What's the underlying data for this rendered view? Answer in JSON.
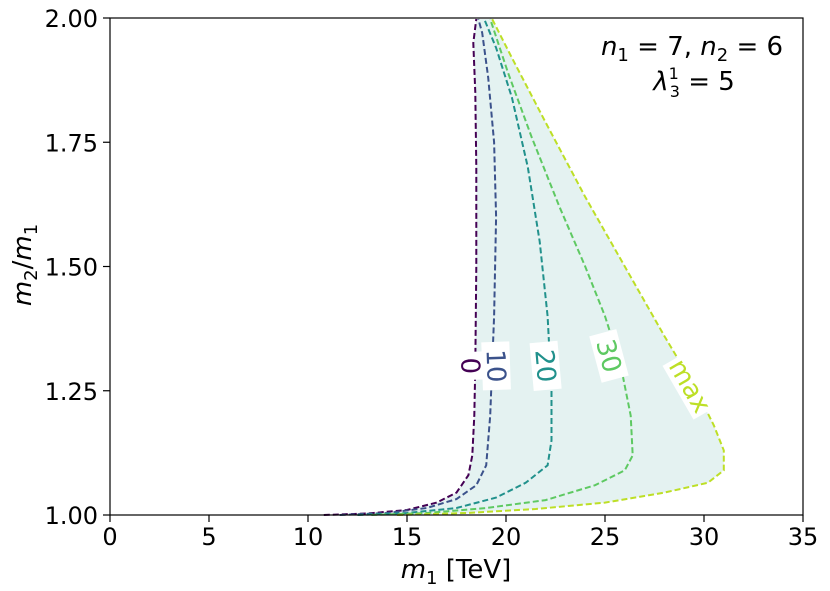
{
  "chart_data": {
    "type": "line",
    "title": "",
    "xlabel_main": "m",
    "xlabel_sub": "1",
    "xlabel_unit": " [TeV]",
    "ylabel_num": "m",
    "ylabel_num_sub": "2",
    "ylabel_sep": "/",
    "ylabel_den": "m",
    "ylabel_den_sub": "1",
    "xlim": [
      0,
      35
    ],
    "ylim": [
      1.0,
      2.0
    ],
    "x_ticks": [
      0,
      5,
      10,
      15,
      20,
      25,
      30,
      35
    ],
    "x_tick_labels": [
      "0",
      "5",
      "10",
      "15",
      "20",
      "25",
      "30",
      "35"
    ],
    "y_ticks": [
      1.0,
      1.25,
      1.5,
      1.75,
      2.0
    ],
    "y_tick_labels": [
      "1.00",
      "1.25",
      "1.50",
      "1.75",
      "2.00"
    ],
    "grid": false,
    "annotation": {
      "line1_a": "n",
      "line1_a_sub": "1",
      "line1_a_val": " = 7, ",
      "line1_b": "n",
      "line1_b_sub": "2",
      "line1_b_val": " = 6",
      "line2": "λ",
      "line2_sub": "3",
      "line2_sup": "1",
      "line2_val": " = 5"
    },
    "fill_color": "#e4f2f1",
    "series": [
      {
        "name": "0",
        "color": "#440154",
        "label_at": [
          18.2,
          1.3
        ],
        "label_rotation": 88,
        "points": [
          [
            10.8,
            1.0
          ],
          [
            13.0,
            1.003
          ],
          [
            15.0,
            1.01
          ],
          [
            16.5,
            1.025
          ],
          [
            17.5,
            1.045
          ],
          [
            18.1,
            1.08
          ],
          [
            18.3,
            1.12
          ],
          [
            18.4,
            1.2
          ],
          [
            18.45,
            1.3
          ],
          [
            18.5,
            1.5
          ],
          [
            18.5,
            1.7
          ],
          [
            18.45,
            1.85
          ],
          [
            18.35,
            1.95
          ],
          [
            18.5,
            1.998
          ]
        ]
      },
      {
        "name": "10",
        "color": "#3b528b",
        "label_at": [
          19.5,
          1.3
        ],
        "label_rotation": 88,
        "points": [
          [
            11.6,
            1.0
          ],
          [
            14.0,
            1.004
          ],
          [
            16.0,
            1.014
          ],
          [
            17.5,
            1.032
          ],
          [
            18.5,
            1.06
          ],
          [
            19.0,
            1.1
          ],
          [
            19.2,
            1.2
          ],
          [
            19.4,
            1.4
          ],
          [
            19.5,
            1.6
          ],
          [
            19.4,
            1.75
          ],
          [
            19.1,
            1.88
          ],
          [
            18.8,
            1.97
          ],
          [
            18.6,
            1.998
          ]
        ]
      },
      {
        "name": "20",
        "color": "#21918c",
        "label_at": [
          22.0,
          1.3
        ],
        "label_rotation": 85,
        "points": [
          [
            12.5,
            1.0
          ],
          [
            15.0,
            1.004
          ],
          [
            17.5,
            1.014
          ],
          [
            19.5,
            1.035
          ],
          [
            21.0,
            1.065
          ],
          [
            22.1,
            1.1
          ],
          [
            22.3,
            1.15
          ],
          [
            22.3,
            1.25
          ],
          [
            22.1,
            1.4
          ],
          [
            21.7,
            1.55
          ],
          [
            21.1,
            1.7
          ],
          [
            20.3,
            1.84
          ],
          [
            19.5,
            1.94
          ],
          [
            18.9,
            1.998
          ]
        ]
      },
      {
        "name": "30",
        "color": "#5ec962",
        "label_at": [
          25.2,
          1.32
        ],
        "label_rotation": 75,
        "points": [
          [
            13.2,
            1.0
          ],
          [
            16.0,
            1.004
          ],
          [
            19.0,
            1.014
          ],
          [
            22.0,
            1.03
          ],
          [
            24.5,
            1.06
          ],
          [
            26.0,
            1.09
          ],
          [
            26.4,
            1.12
          ],
          [
            26.3,
            1.2
          ],
          [
            25.8,
            1.3
          ],
          [
            25.0,
            1.4
          ],
          [
            24.0,
            1.5
          ],
          [
            22.7,
            1.62
          ],
          [
            21.3,
            1.76
          ],
          [
            20.1,
            1.89
          ],
          [
            19.2,
            1.998
          ]
        ]
      },
      {
        "name": "max",
        "color": "#bddf26",
        "label_at": [
          29.3,
          1.26
        ],
        "label_rotation": 60,
        "points": [
          [
            14.5,
            1.0
          ],
          [
            18.0,
            1.004
          ],
          [
            21.5,
            1.012
          ],
          [
            25.0,
            1.025
          ],
          [
            28.0,
            1.045
          ],
          [
            30.2,
            1.065
          ],
          [
            31.0,
            1.09
          ],
          [
            31.0,
            1.13
          ],
          [
            30.5,
            1.18
          ],
          [
            29.5,
            1.26
          ],
          [
            28.0,
            1.36
          ],
          [
            26.0,
            1.5
          ],
          [
            24.0,
            1.64
          ],
          [
            22.0,
            1.79
          ],
          [
            20.3,
            1.92
          ],
          [
            19.3,
            1.998
          ]
        ]
      }
    ]
  }
}
